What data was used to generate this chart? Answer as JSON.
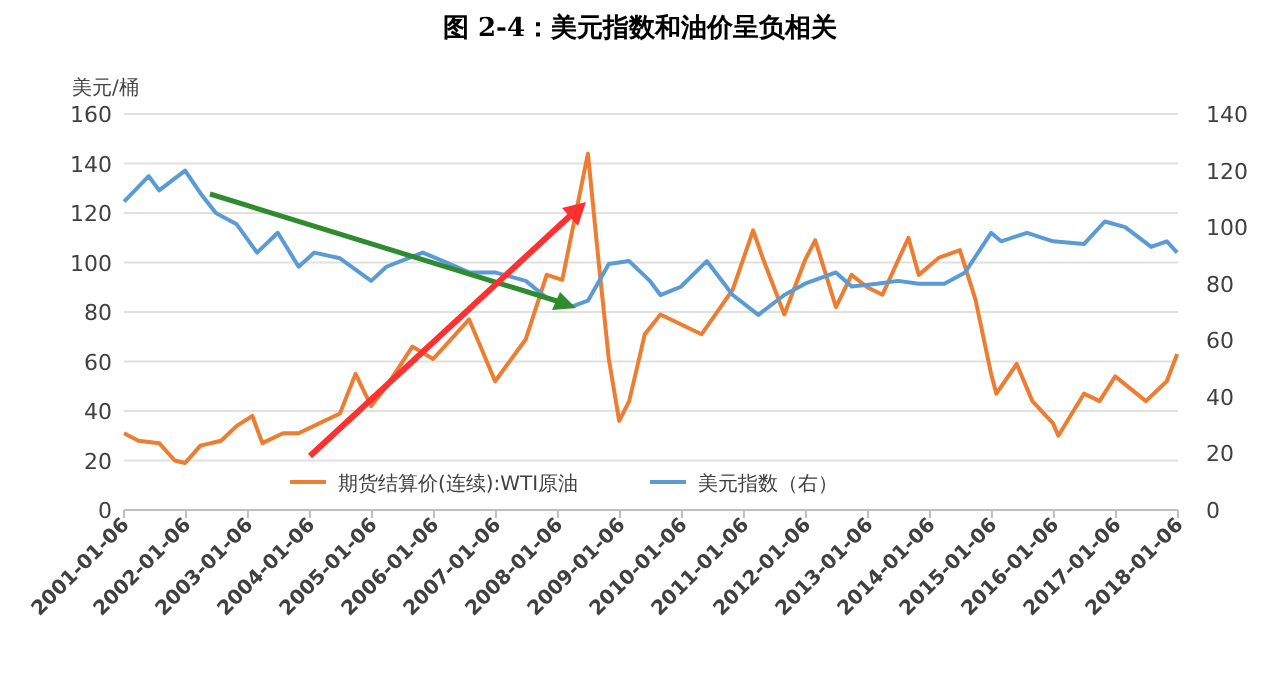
{
  "chart_data": {
    "type": "line",
    "title": "图 2-4：美元指数和油价呈负相关",
    "ylabel": "美元/桶",
    "xlim": [
      "2001-01-06",
      "2018-01-06"
    ],
    "xticks": [
      "2001-01-06",
      "2002-01-06",
      "2003-01-06",
      "2004-01-06",
      "2005-01-06",
      "2006-01-06",
      "2007-01-06",
      "2008-01-06",
      "2009-01-06",
      "2010-01-06",
      "2011-01-06",
      "2012-01-06",
      "2013-01-06",
      "2014-01-06",
      "2015-01-06",
      "2016-01-06",
      "2017-01-06",
      "2018-01-06"
    ],
    "ylim": [
      0,
      160
    ],
    "yticks": [
      0,
      20,
      40,
      60,
      80,
      100,
      120,
      140,
      160
    ],
    "y2lim": [
      0,
      140
    ],
    "y2ticks": [
      0,
      20,
      40,
      60,
      80,
      100,
      120,
      140
    ],
    "grid": "y",
    "legend": "bottom",
    "marker": "none",
    "line_style": "solid",
    "series": [
      {
        "name": "期货结算价(连续):WTI原油",
        "color": "#ed7d31",
        "x": [
          "2001-01-06",
          "2001-04",
          "2001-08",
          "2001-11",
          "2002-01",
          "2002-04",
          "2002-08",
          "2002-11",
          "2003-02",
          "2003-04",
          "2003-08",
          "2003-11",
          "2004-03",
          "2004-07",
          "2004-10",
          "2005-01",
          "2005-04",
          "2005-09",
          "2006-01",
          "2006-08",
          "2007-01",
          "2007-07",
          "2007-11",
          "2008-02",
          "2008-07",
          "2008-09",
          "2008-11",
          "2009-01",
          "2009-03",
          "2009-06",
          "2009-09",
          "2010-05",
          "2010-11",
          "2011-03",
          "2011-05",
          "2011-09",
          "2012-01",
          "2012-03",
          "2012-07",
          "2012-10",
          "2013-01",
          "2013-04",
          "2013-09",
          "2013-11",
          "2014-03",
          "2014-07",
          "2014-10",
          "2015-01",
          "2015-02",
          "2015-06",
          "2015-09",
          "2016-01",
          "2016-02",
          "2016-07",
          "2016-10",
          "2017-01",
          "2017-07",
          "2017-11",
          "2018-01"
        ],
        "values": [
          31,
          28,
          27,
          20,
          19,
          26,
          28,
          34,
          38,
          27,
          31,
          31,
          35,
          39,
          55,
          42,
          50,
          66,
          61,
          77,
          52,
          69,
          95,
          93,
          144,
          101,
          61,
          36,
          44,
          71,
          79,
          71,
          89,
          113,
          101,
          79,
          101,
          109,
          82,
          95,
          90,
          87,
          110,
          95,
          102,
          105,
          85,
          55,
          47,
          59,
          44,
          35,
          30,
          47,
          44,
          54,
          44,
          52,
          63
        ]
      },
      {
        "name": "美元指数（右）",
        "color": "#5b9bd5",
        "axis": "y2",
        "x": [
          "2001-01-06",
          "2001-06",
          "2001-08",
          "2002-01",
          "2002-04",
          "2002-07",
          "2002-11",
          "2003-03",
          "2003-07",
          "2003-11",
          "2004-02",
          "2004-07",
          "2005-01",
          "2005-04",
          "2005-11",
          "2006-03",
          "2006-08",
          "2007-01",
          "2007-07",
          "2007-11",
          "2008-04",
          "2008-07",
          "2008-11",
          "2009-03",
          "2009-07",
          "2009-09",
          "2010-01",
          "2010-06",
          "2010-11",
          "2011-04",
          "2011-09",
          "2012-01",
          "2012-07",
          "2012-10",
          "2013-03",
          "2013-07",
          "2013-11",
          "2014-04",
          "2014-08",
          "2015-01",
          "2015-03",
          "2015-08",
          "2016-01",
          "2016-07",
          "2016-11",
          "2017-03",
          "2017-08",
          "2017-11",
          "2018-01"
        ],
        "values": [
          109,
          118,
          113,
          120,
          112,
          105,
          101,
          91,
          98,
          86,
          91,
          89,
          81,
          86,
          91,
          88,
          84,
          84,
          81,
          75,
          72,
          74,
          87,
          88,
          81,
          76,
          79,
          88,
          76,
          69,
          76,
          80,
          84,
          79,
          80,
          81,
          80,
          80,
          84,
          98,
          95,
          98,
          95,
          94,
          102,
          100,
          93,
          95,
          91
        ]
      }
    ]
  }
}
